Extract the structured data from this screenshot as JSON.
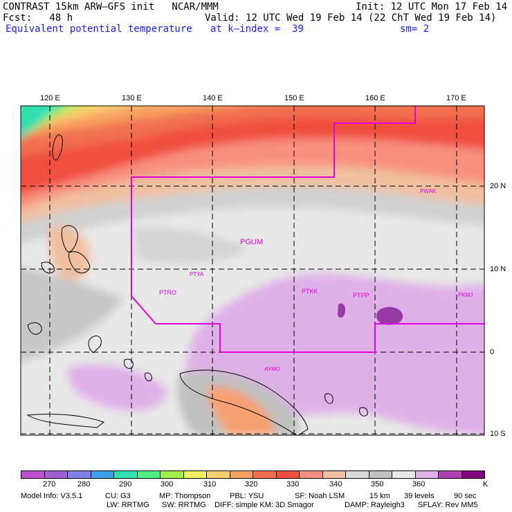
{
  "header": {
    "line1_left": "CONTRAST 15km ARW—GFS init   NCAR/MMM",
    "line1_right": "Init: 12 UTC Mon 17 Feb 14",
    "line2_left": "Fcst:   48 h",
    "line2_right": "Valid: 12 UTC Wed 19 Feb 14 (22 ChT Wed 19 Feb 14)",
    "line3_left": "Equivalent potential temperature",
    "line3_mid": "at k—index =  39",
    "line3_right": "sm= 2"
  },
  "map": {
    "lon_labels": [
      "120 E",
      "130 E",
      "140 E",
      "150 E",
      "160 E",
      "170 E"
    ],
    "lat_labels": [
      "20 N",
      "10 N",
      "0",
      "10 S"
    ],
    "stations": [
      "PWAK",
      "PGUM",
      "PTYA",
      "PTRO",
      "PTKK",
      "PTPP",
      "PKMJ",
      "AYMO"
    ],
    "boundary_color": "#e000e0"
  },
  "colorbar": {
    "colors": [
      "#c050d0",
      "#a060d0",
      "#8080e8",
      "#40a0f0",
      "#30e0b0",
      "#50f080",
      "#a0f050",
      "#f0f060",
      "#f8d070",
      "#f8a060",
      "#f07050",
      "#f05040",
      "#f89080",
      "#f0c0a0",
      "#d8d8d8",
      "#c0c0c0",
      "#e8e8e8",
      "#e0b0e8",
      "#b040b0",
      "#800080"
    ],
    "labels": [
      "270",
      "280",
      "290",
      "300",
      "310",
      "320",
      "330",
      "340",
      "350",
      "360",
      "K"
    ]
  },
  "model_info": {
    "line1": [
      "Model Info: V3.5.1",
      "CU: G3",
      "MP: Thompson",
      "PBL: YSU",
      "SF: Noah LSM",
      "15 km",
      "39 levels",
      "90 sec"
    ],
    "line2": [
      "LW: RRTMG",
      "SW: RRTMG",
      "DIFF: simple KM: 3D Smagor",
      "DAMP: Rayleigh3",
      "SFLAY: Rev MM5"
    ]
  }
}
